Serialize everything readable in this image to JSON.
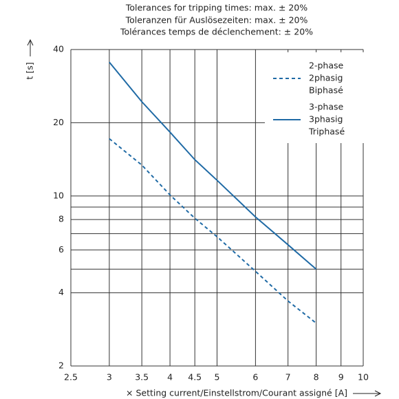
{
  "chart_data": {
    "type": "line",
    "title": [
      "Tolerances for tripping times: max. ± 20%",
      "Toleranzen für Auslösezeiten: max. ± 20%",
      "Tolérances temps de déclenchement: ± 20%"
    ],
    "x_label": "× Setting current/Einstellstrom/Courant assigné [A]",
    "y_label": "t [s]",
    "x_log": true,
    "y_log": true,
    "grid": true,
    "xlim": [
      2.5,
      10
    ],
    "ylim": [
      2,
      40
    ],
    "xticks": [
      2.5,
      3,
      3.5,
      4,
      4.5,
      5,
      6,
      7,
      8,
      9,
      10
    ],
    "yticks": [
      2,
      4,
      6,
      8,
      10,
      20,
      40
    ],
    "y_minor_gridlines": [
      5,
      7,
      9
    ],
    "legend": "upper right",
    "series": [
      {
        "name": [
          "2-phase",
          "2phasig",
          "Biphasé"
        ],
        "color": "#1f6aa5",
        "dashed": true,
        "x": [
          3,
          3.5,
          4,
          4.5,
          5,
          6,
          7,
          8
        ],
        "values": [
          17.2,
          13.4,
          10.1,
          8.1,
          6.8,
          4.9,
          3.7,
          3.0
        ]
      },
      {
        "name": [
          "3-phase",
          "3phasig",
          "Triphasé"
        ],
        "color": "#1f6aa5",
        "dashed": false,
        "x": [
          3,
          3.5,
          4,
          4.5,
          5,
          6,
          7,
          8
        ],
        "values": [
          35.5,
          24.4,
          18.3,
          14.1,
          11.6,
          8.2,
          6.3,
          5.0
        ]
      }
    ]
  }
}
